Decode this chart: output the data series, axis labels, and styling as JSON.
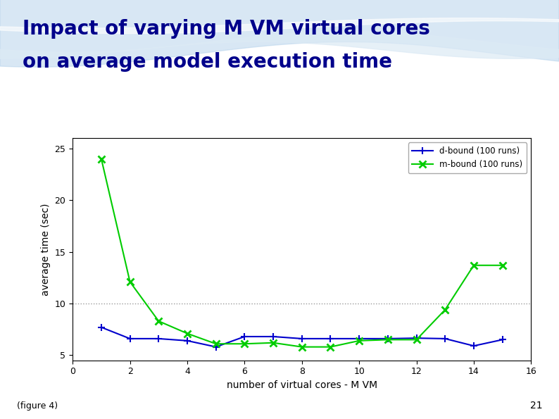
{
  "title_line1": "Impact of varying M VM virtual cores",
  "title_line2": "on average model execution time",
  "xlabel": "number of virtual cores - M VM",
  "ylabel": "average time (sec)",
  "figure_label": "(figure 4)",
  "slide_number": "21",
  "xlim": [
    0,
    16
  ],
  "ylim": [
    4.5,
    26
  ],
  "yticks": [
    5,
    10,
    15,
    20,
    25
  ],
  "xticks": [
    0,
    2,
    4,
    6,
    8,
    10,
    12,
    14,
    16
  ],
  "d_bound_x": [
    1,
    2,
    3,
    4,
    5,
    6,
    7,
    8,
    9,
    10,
    11,
    12,
    13,
    14,
    15
  ],
  "d_bound_y": [
    7.7,
    6.6,
    6.6,
    6.4,
    5.8,
    6.8,
    6.8,
    6.6,
    6.6,
    6.6,
    6.6,
    6.65,
    6.6,
    5.9,
    6.5
  ],
  "m_bound_x": [
    1,
    2,
    3,
    4,
    5,
    6,
    7,
    8,
    9,
    10,
    11,
    12,
    13,
    14,
    15
  ],
  "m_bound_y": [
    24.0,
    12.1,
    8.3,
    7.1,
    6.1,
    6.1,
    6.2,
    5.8,
    5.8,
    6.4,
    6.5,
    6.5,
    9.4,
    13.7,
    13.7
  ],
  "d_bound_color": "#0000cd",
  "m_bound_color": "#00cc00",
  "d_bound_label": "d-bound (100 runs)",
  "m_bound_label": "m-bound (100 runs)",
  "hline_y": 10,
  "hline_color": "#999999",
  "bg_color": "#ffffff",
  "title_color": "#00008B",
  "title_fontsize": 20,
  "axis_bg_color": "#ffffff",
  "wave_color1": "#a8c8e8",
  "wave_color2": "#c8dff0"
}
